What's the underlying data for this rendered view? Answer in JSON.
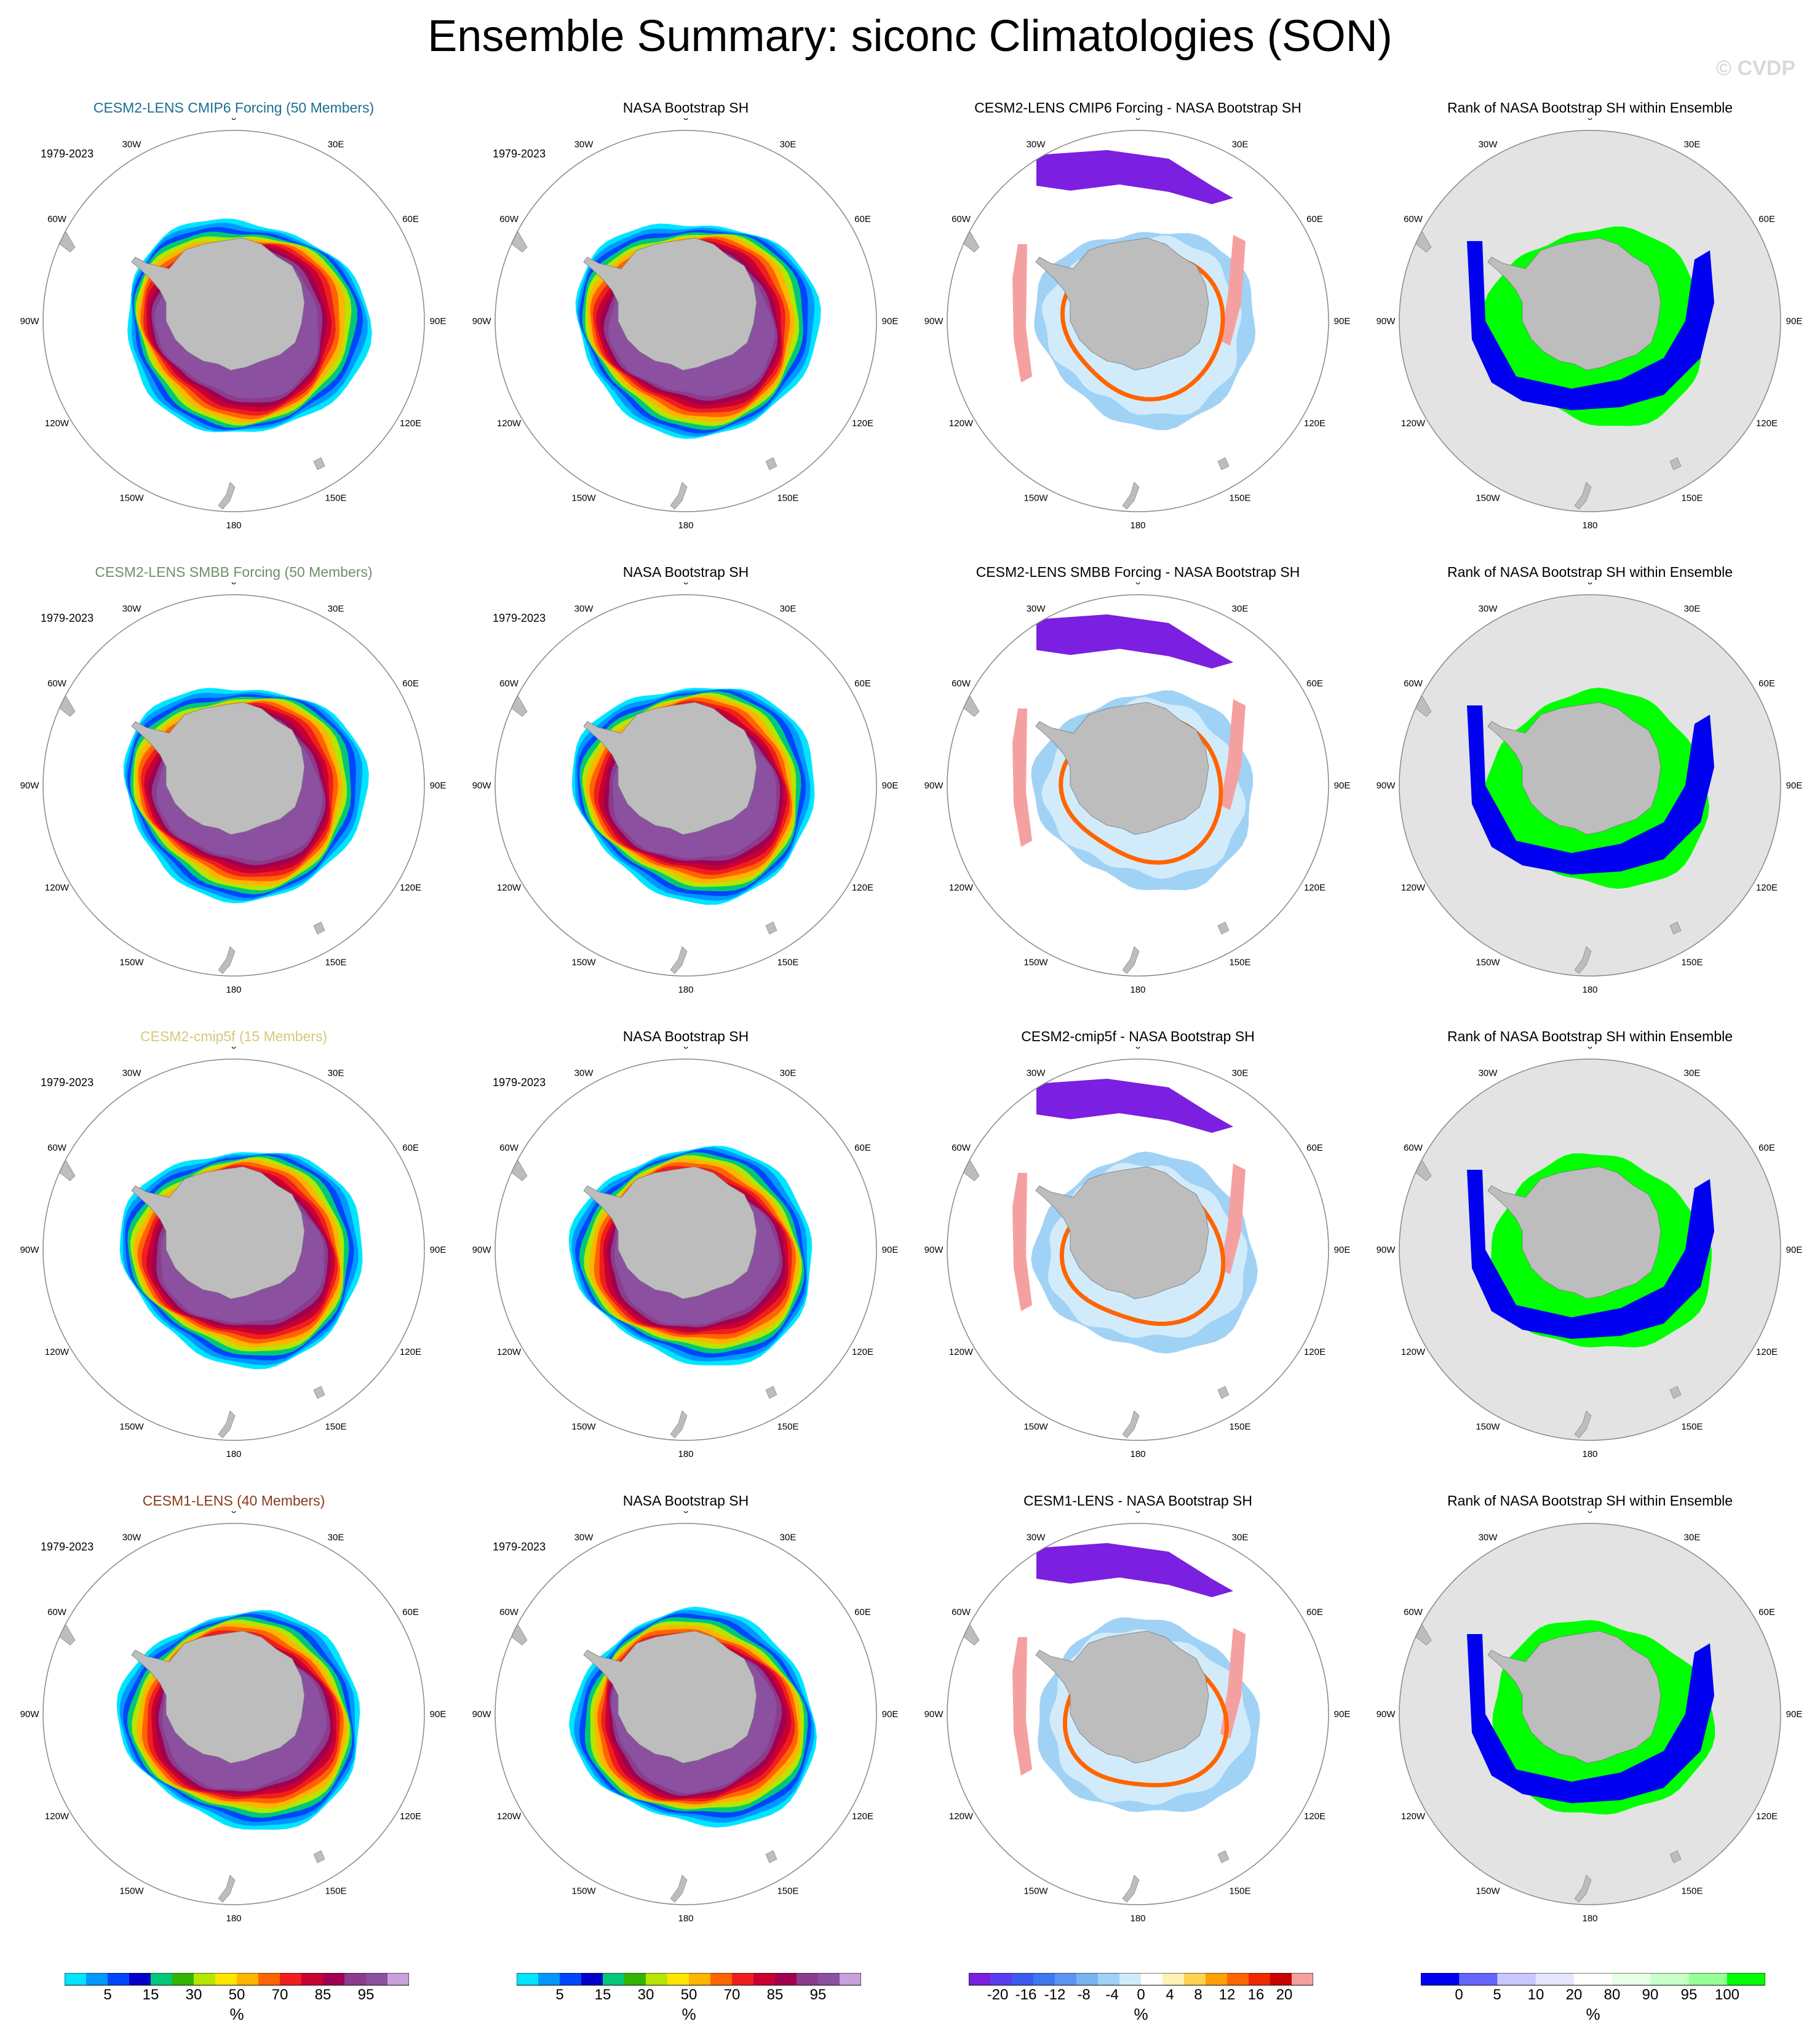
{
  "title": "Ensemble Summary: siconc Climatologies (SON)",
  "watermark": "© CVDP",
  "years": "1979-2023",
  "lon_labels": [
    "0",
    "30E",
    "60E",
    "90E",
    "120E",
    "150E",
    "180",
    "150W",
    "120W",
    "90W",
    "60W",
    "30W"
  ],
  "rows": [
    {
      "ensemble_title": "CESM2-LENS CMIP6 Forcing (50 Members)",
      "ensemble_color": "#1a6f8e",
      "obs_title": "NASA Bootstrap SH",
      "diff_title": "CESM2-LENS CMIP6 Forcing - NASA Bootstrap SH",
      "rank_title": "Rank of NASA Bootstrap SH within Ensemble"
    },
    {
      "ensemble_title": "CESM2-LENS SMBB Forcing (50 Members)",
      "ensemble_color": "#6f8f6a",
      "obs_title": "NASA Bootstrap SH",
      "diff_title": "CESM2-LENS SMBB Forcing - NASA Bootstrap SH",
      "rank_title": "Rank of NASA Bootstrap SH within Ensemble"
    },
    {
      "ensemble_title": "CESM2-cmip5f (15 Members)",
      "ensemble_color": "#d8c87a",
      "obs_title": "NASA Bootstrap SH",
      "diff_title": "CESM2-cmip5f - NASA Bootstrap SH",
      "rank_title": "Rank of NASA Bootstrap SH within Ensemble"
    },
    {
      "ensemble_title": "CESM1-LENS (40 Members)",
      "ensemble_color": "#8a3a1a",
      "obs_title": "NASA Bootstrap SH",
      "diff_title": "CESM1-LENS - NASA Bootstrap SH",
      "rank_title": "Rank of NASA Bootstrap SH within Ensemble"
    }
  ],
  "colorbars": [
    {
      "unit": "%",
      "colors": [
        "#00e5ff",
        "#0098ff",
        "#0046ff",
        "#0000c8",
        "#00c878",
        "#32b400",
        "#b4e600",
        "#ffe600",
        "#ffb400",
        "#ff6400",
        "#f01e1e",
        "#c80032",
        "#a00050",
        "#8c3c8c",
        "#8c50a0",
        "#c8a0dc"
      ],
      "labels": [
        "5",
        "15",
        "30",
        "50",
        "70",
        "85",
        "95"
      ]
    },
    {
      "unit": "%",
      "colors": [
        "#00e5ff",
        "#0098ff",
        "#0046ff",
        "#0000c8",
        "#00c878",
        "#32b400",
        "#b4e600",
        "#ffe600",
        "#ffb400",
        "#ff6400",
        "#f01e1e",
        "#c80032",
        "#a00050",
        "#8c3c8c",
        "#8c50a0",
        "#c8a0dc"
      ],
      "labels": [
        "5",
        "15",
        "30",
        "50",
        "70",
        "85",
        "95"
      ]
    },
    {
      "unit": "%",
      "colors": [
        "#7b1fe0",
        "#5a3cf0",
        "#3c5af0",
        "#3c78f0",
        "#5a96f0",
        "#78b4f0",
        "#a0d2f5",
        "#d2ebfa",
        "#ffffff",
        "#fff0b4",
        "#ffd250",
        "#ffa000",
        "#ff6400",
        "#f02800",
        "#c80000",
        "#f5a0a0"
      ],
      "labels": [
        "-20",
        "-16",
        "-12",
        "-8",
        "-4",
        "0",
        "4",
        "8",
        "12",
        "16",
        "20"
      ]
    },
    {
      "unit": "%",
      "colors": [
        "#0000f0",
        "#6464ff",
        "#c8c8ff",
        "#e6e6ff",
        "#ffffff",
        "#e6ffe6",
        "#c8ffc8",
        "#96ff96",
        "#00ff00"
      ],
      "labels": [
        "0",
        "5",
        "10",
        "20",
        "80",
        "90",
        "95",
        "100"
      ]
    }
  ],
  "chart_data": [
    {
      "type": "heatmap",
      "title": "CESM2-LENS CMIP6 Forcing (50 Members)",
      "field": "siconc SON climatology",
      "period": "1979-2023",
      "unit": "%",
      "contour_levels": [
        5,
        10,
        15,
        20,
        30,
        40,
        50,
        60,
        70,
        75,
        80,
        85,
        90,
        95,
        99
      ]
    },
    {
      "type": "heatmap",
      "title": "CESM2-LENS CMIP6 Forcing - NASA Bootstrap SH",
      "unit": "%",
      "contour_levels": [
        -20,
        -16,
        -12,
        -8,
        -4,
        0,
        4,
        8,
        12,
        16,
        20
      ]
    },
    {
      "type": "heatmap",
      "title": "Rank of NASA Bootstrap SH within Ensemble",
      "unit": "%",
      "contour_levels": [
        0,
        5,
        10,
        20,
        80,
        90,
        95,
        100
      ]
    }
  ]
}
